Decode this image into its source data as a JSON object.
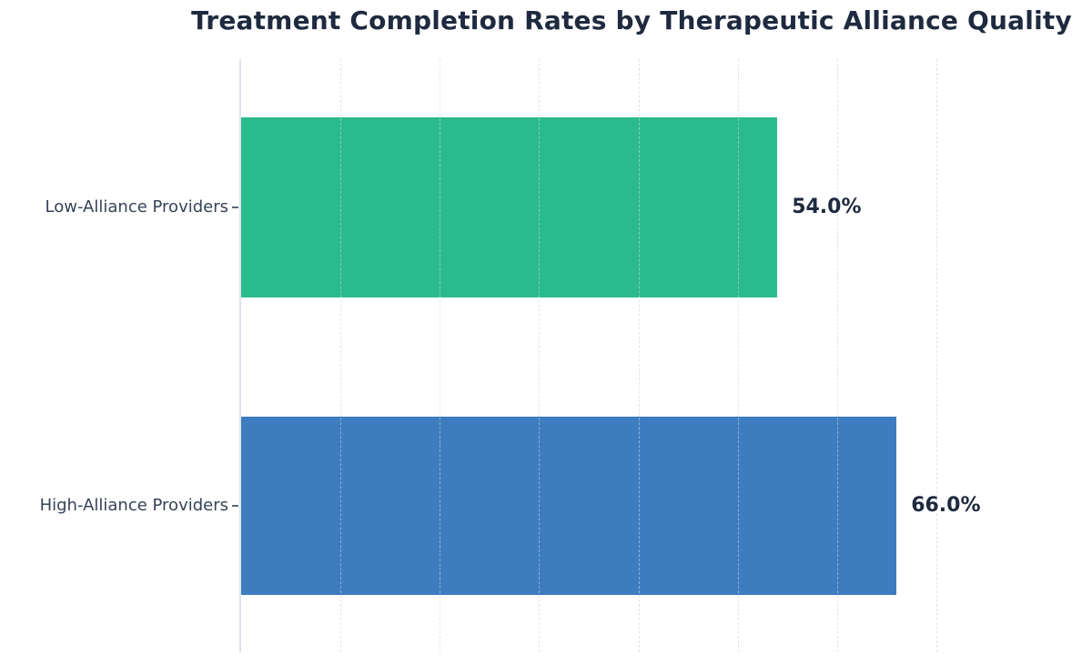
{
  "chart_data": {
    "type": "bar",
    "orientation": "horizontal",
    "title": "Treatment Completion Rates by Therapeutic Alliance Quality",
    "categories": [
      "Low-Alliance Providers",
      "High-Alliance Providers"
    ],
    "values": [
      54.0,
      66.0
    ],
    "value_labels": [
      "54.0%",
      "66.0%"
    ],
    "bar_colors": [
      "#2abb8d",
      "#3d7cbf"
    ],
    "xlabel": "",
    "ylabel": "",
    "xlim": [
      0,
      79
    ],
    "grid": "vertical-dashed",
    "grid_step": 10,
    "x_tick_labels_visible": false,
    "legend": "none"
  },
  "palette": {
    "background": "#ffffff",
    "title_color": "#1f2a40",
    "value_label_color": "#1f2a40",
    "category_label_color": "#364257",
    "grid_color": "#d9dfe8",
    "spine_color": "#dde3ec",
    "tick_color": "#5a6478"
  }
}
